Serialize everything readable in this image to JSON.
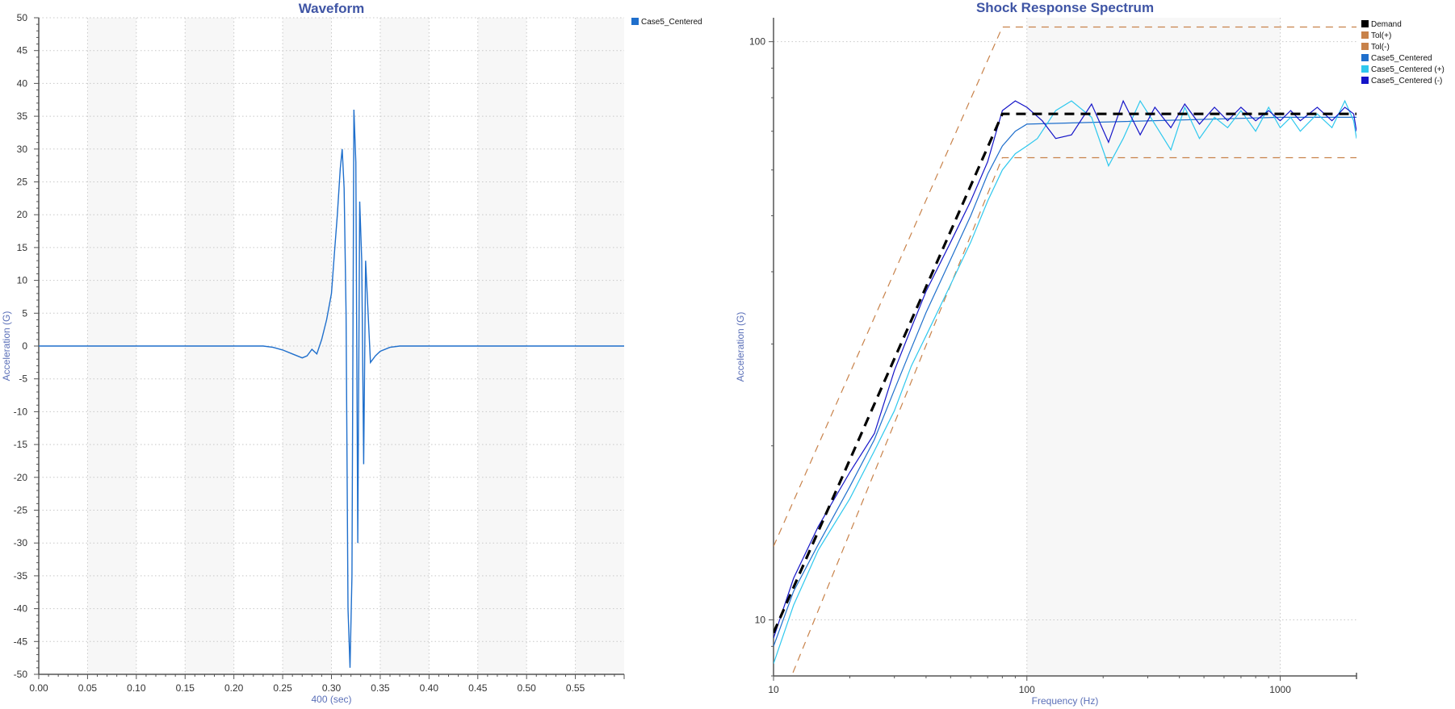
{
  "chart_data": [
    {
      "type": "line",
      "title": "Waveform",
      "xlabel": "400 (sec)",
      "ylabel": "Acceleration (G)",
      "xlim": [
        0.0,
        0.6
      ],
      "ylim": [
        -50,
        50
      ],
      "xticks": [
        "0.00",
        "0.05",
        "0.10",
        "0.15",
        "0.20",
        "0.25",
        "0.30",
        "0.35",
        "0.40",
        "0.45",
        "0.50",
        "0.55"
      ],
      "yticks": [
        "50",
        "45",
        "40",
        "35",
        "30",
        "25",
        "20",
        "15",
        "10",
        "5",
        "0",
        "-5",
        "-10",
        "-15",
        "-20",
        "-25",
        "-30",
        "-35",
        "-40",
        "-45",
        "-50"
      ],
      "legend_position": "top-right",
      "grid": true,
      "series": [
        {
          "name": "Case5_Centered",
          "color": "#1f6fcc",
          "x": [
            0.0,
            0.23,
            0.24,
            0.25,
            0.26,
            0.27,
            0.275,
            0.28,
            0.285,
            0.29,
            0.295,
            0.3,
            0.303,
            0.306,
            0.309,
            0.311,
            0.313,
            0.315,
            0.317,
            0.319,
            0.321,
            0.323,
            0.325,
            0.327,
            0.329,
            0.331,
            0.333,
            0.335,
            0.34,
            0.345,
            0.35,
            0.36,
            0.37,
            0.6
          ],
          "y": [
            0,
            0,
            -0.2,
            -0.6,
            -1.2,
            -1.8,
            -1.5,
            -0.5,
            -1.2,
            1,
            4,
            8,
            14,
            20,
            27,
            30,
            24,
            5,
            -40,
            -49,
            -35,
            36,
            28,
            -30,
            22,
            13,
            -18,
            13,
            -2.5,
            -1.5,
            -0.8,
            -0.2,
            0,
            0
          ]
        }
      ]
    },
    {
      "type": "line",
      "title": "Shock Response Spectrum",
      "xlabel": "Frequency (Hz)",
      "ylabel": "Acceleration (G)",
      "xscale": "log",
      "yscale": "log",
      "xlim": [
        10,
        2000
      ],
      "ylim": [
        8,
        110
      ],
      "xticks": [
        "10",
        "100",
        "1000"
      ],
      "yticks": [
        "100",
        "10"
      ],
      "legend_position": "top-right",
      "grid": true,
      "series": [
        {
          "name": "Demand",
          "color": "#000000",
          "x": [
            10,
            80,
            2000
          ],
          "y": [
            9.5,
            75,
            75
          ]
        },
        {
          "name": "Tol(+)",
          "color": "#c8824a",
          "x": [
            10,
            80,
            2000
          ],
          "y": [
            13.4,
            106,
            106
          ]
        },
        {
          "name": "Tol(-)",
          "color": "#c8824a",
          "x": [
            10,
            80,
            2000
          ],
          "y": [
            6.7,
            63,
            63
          ]
        },
        {
          "name": "Case5_Centered",
          "color": "#1f6fcc",
          "x": [
            10,
            12,
            15,
            20,
            25,
            30,
            35,
            40,
            50,
            60,
            70,
            80,
            90,
            100,
            1000,
            2000
          ],
          "y": [
            9.0,
            11.2,
            13.5,
            17.0,
            20.5,
            25.0,
            29.5,
            34.0,
            42.0,
            50.0,
            59.0,
            66.0,
            70.0,
            72.0,
            74.0,
            74.0
          ]
        },
        {
          "name": "Case5_Centered (+)",
          "color": "#2ec8ee",
          "x": [
            10,
            12,
            15,
            20,
            25,
            30,
            35,
            40,
            50,
            60,
            70,
            80,
            90,
            100,
            110,
            130,
            150,
            180,
            210,
            240,
            280,
            320,
            370,
            420,
            480,
            550,
            620,
            700,
            800,
            900,
            1000,
            1100,
            1200,
            1400,
            1600,
            1800,
            1950,
            2000
          ],
          "y": [
            8.4,
            10.6,
            13.2,
            16.2,
            19.6,
            23.0,
            27.5,
            31.0,
            38.0,
            45.0,
            53.0,
            60.0,
            64.0,
            66.0,
            68.0,
            76.0,
            79.0,
            74.0,
            61.0,
            68.0,
            79.0,
            72.0,
            65.0,
            77.0,
            68.0,
            74.0,
            71.0,
            76.0,
            70.0,
            77.0,
            71.0,
            74.0,
            70.0,
            75.0,
            71.0,
            79.0,
            73.0,
            68.0
          ]
        },
        {
          "name": "Case5_Centered (-)",
          "color": "#1515c8",
          "x": [
            10,
            12,
            15,
            20,
            25,
            30,
            35,
            40,
            50,
            60,
            70,
            80,
            90,
            100,
            115,
            130,
            150,
            180,
            210,
            240,
            280,
            320,
            370,
            420,
            480,
            550,
            620,
            700,
            800,
            900,
            1000,
            1100,
            1200,
            1400,
            1600,
            1800,
            1950,
            2000
          ],
          "y": [
            9.3,
            11.8,
            14.5,
            18.0,
            21.0,
            27.0,
            32.0,
            37.0,
            45.0,
            53.0,
            62.0,
            76.0,
            79.0,
            77.0,
            73.0,
            68.0,
            69.0,
            78.0,
            67.0,
            79.0,
            69.0,
            77.0,
            71.0,
            78.0,
            72.0,
            77.0,
            73.0,
            77.0,
            73.0,
            76.0,
            73.0,
            76.0,
            73.0,
            77.0,
            73.0,
            77.0,
            75.0,
            70.0
          ]
        }
      ]
    }
  ]
}
